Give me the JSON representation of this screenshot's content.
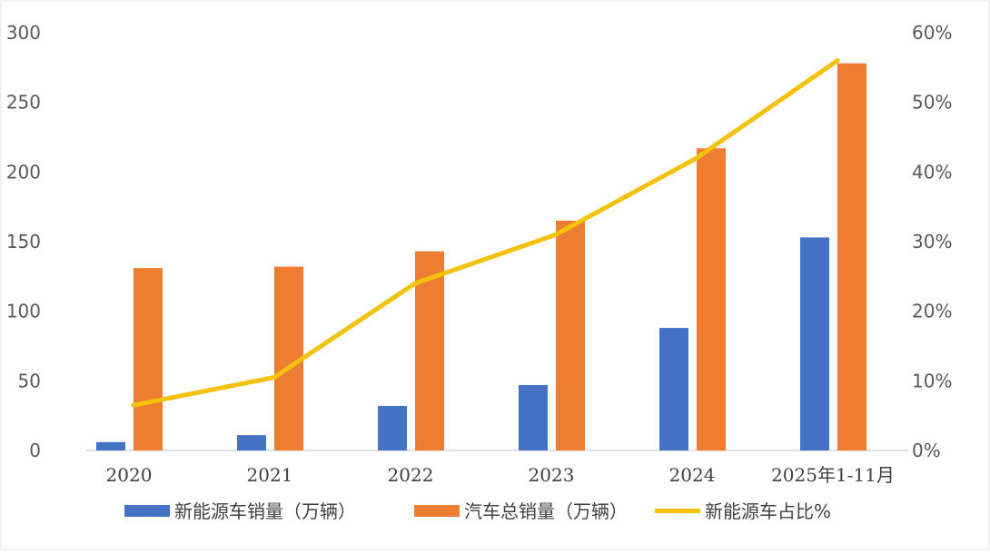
{
  "chart_data": {
    "type": "bar",
    "categories": [
      "2020",
      "2021",
      "2022",
      "2023",
      "2024",
      "2025年1-11月"
    ],
    "series": [
      {
        "name": "新能源车销量（万辆）",
        "type": "bar",
        "axis": "left",
        "color": "#4472C4",
        "values": [
          6,
          11,
          32,
          47,
          88,
          153
        ]
      },
      {
        "name": "汽车总销量（万辆）",
        "type": "bar",
        "axis": "left",
        "color": "#ED7D31",
        "values": [
          131,
          132,
          143,
          165,
          217,
          278
        ]
      },
      {
        "name": "新能源车占比%",
        "type": "line",
        "axis": "right",
        "color": "#F4C20D",
        "values": [
          6.5,
          10.5,
          24,
          31,
          42,
          56
        ]
      }
    ],
    "y_left": {
      "ticks": [
        "0",
        "50",
        "100",
        "150",
        "200",
        "250",
        "300"
      ],
      "lim": [
        0,
        300
      ]
    },
    "y_right": {
      "ticks": [
        "0%",
        "10%",
        "20%",
        "30%",
        "40%",
        "50%",
        "60%"
      ],
      "lim": [
        0,
        60
      ]
    },
    "grid": false,
    "legend_position": "bottom"
  }
}
